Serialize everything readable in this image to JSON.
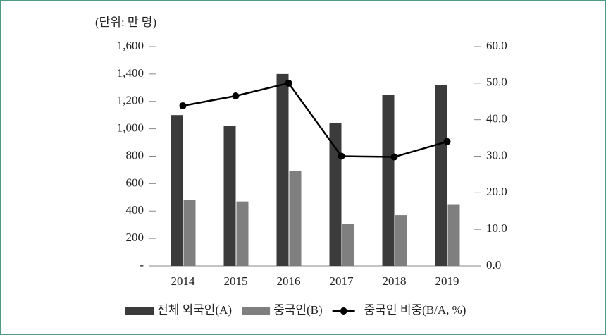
{
  "chart_data": {
    "type": "bar_line",
    "unit_label": "(단위: 만 명)",
    "categories": [
      "2014",
      "2015",
      "2016",
      "2017",
      "2018",
      "2019"
    ],
    "series": [
      {
        "name": "전체 외국인(A)",
        "color": "#3b3b3b",
        "type": "bar",
        "values": [
          1100,
          1020,
          1400,
          1040,
          1250,
          1320
        ]
      },
      {
        "name": "중국인(B)",
        "color": "#7f7f7f",
        "type": "bar",
        "values": [
          480,
          470,
          690,
          305,
          370,
          450
        ]
      },
      {
        "name": "중국인 비중(B/A, %)",
        "color": "#000000",
        "type": "line",
        "axis": "y2",
        "values": [
          43.8,
          46.5,
          50.0,
          30.0,
          29.8,
          34.0
        ]
      }
    ],
    "ylim": [
      0,
      1600
    ],
    "yticks": [
      {
        "value": 0,
        "label": "-"
      },
      200,
      400,
      600,
      800,
      {
        "value": 1000,
        "label": "1,000"
      },
      {
        "value": 1200,
        "label": "1,200"
      },
      {
        "value": 1400,
        "label": "1,400"
      },
      {
        "value": 1600,
        "label": "1,600"
      }
    ],
    "y2lim": [
      0,
      60
    ],
    "y2ticks": [
      {
        "value": 0,
        "label": "0.0"
      },
      {
        "value": 10,
        "label": "10.0"
      },
      {
        "value": 20,
        "label": "20.0"
      },
      {
        "value": 30,
        "label": "30.0"
      },
      {
        "value": 40,
        "label": "40.0"
      },
      {
        "value": 50,
        "label": "50.0"
      },
      {
        "value": 60,
        "label": "60.0"
      }
    ],
    "legend": "bottom"
  }
}
